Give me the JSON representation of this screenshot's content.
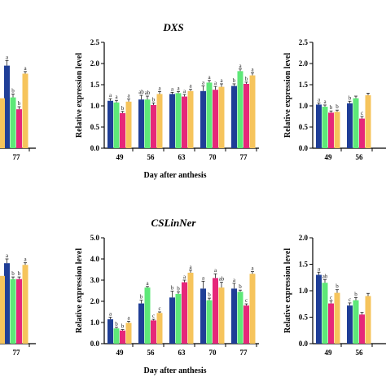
{
  "chart_data": [
    {
      "id": "top-left",
      "type": "bar",
      "categories": [
        "77"
      ],
      "ylim": [
        0,
        2.5
      ],
      "series": [
        {
          "values": [
            1.95
          ],
          "errors": [
            0.12
          ],
          "letters": [
            "a"
          ]
        },
        {
          "values": [
            1.2
          ],
          "errors": [
            0.08
          ],
          "letters": [
            "b"
          ]
        },
        {
          "values": [
            0.92
          ],
          "errors": [
            0.06
          ],
          "letters": [
            "b"
          ]
        },
        {
          "values": [
            1.76
          ],
          "errors": [
            0.05
          ],
          "letters": [
            "a"
          ]
        }
      ],
      "extra_left_bar": {
        "value": 1.18,
        "letter": ""
      }
    },
    {
      "id": "top-middle",
      "type": "bar",
      "title": "DXS",
      "xlabel": "Day after anthesis",
      "ylabel": "Relative expression level",
      "categories": [
        "49",
        "56",
        "63",
        "70",
        "77"
      ],
      "yticks": [
        "0.0",
        "0.5",
        "1.0",
        "1.5",
        "2.0",
        "2.5"
      ],
      "ylim": [
        0,
        2.5
      ],
      "series": [
        {
          "values": [
            1.12,
            1.15,
            1.28,
            1.35,
            1.47
          ],
          "errors": [
            0.05,
            0.1,
            0.04,
            0.12,
            0.05
          ],
          "letters": [
            "a",
            "ab",
            "a",
            "a",
            "b"
          ]
        },
        {
          "values": [
            1.08,
            1.15,
            1.3,
            1.55,
            1.82
          ],
          "errors": [
            0.05,
            0.08,
            0.04,
            0.05,
            0.05
          ],
          "letters": [
            "a",
            "ab",
            "a",
            "a",
            "a"
          ]
        },
        {
          "values": [
            0.83,
            1.02,
            1.22,
            1.38,
            1.52
          ],
          "errors": [
            0.04,
            0.05,
            0.05,
            0.08,
            0.04
          ],
          "letters": [
            "b",
            "b",
            "a",
            "a",
            "b"
          ]
        },
        {
          "values": [
            1.1,
            1.28,
            1.35,
            1.45,
            1.72
          ],
          "errors": [
            0.06,
            0.06,
            0.04,
            0.07,
            0.06
          ],
          "letters": [
            "a",
            "a",
            "a",
            "a",
            "a"
          ]
        }
      ]
    },
    {
      "id": "top-right",
      "type": "bar",
      "ylabel": "Relative expression level",
      "categories": [
        "49",
        "56"
      ],
      "yticks": [
        "0.0",
        "0.5",
        "1.0",
        "1.5",
        "2.0",
        "2.5"
      ],
      "ylim": [
        0,
        2.5
      ],
      "series": [
        {
          "values": [
            1.03,
            1.06
          ],
          "errors": [
            0.04,
            0.05
          ],
          "letters": [
            "a",
            "b"
          ]
        },
        {
          "values": [
            0.98,
            1.18
          ],
          "errors": [
            0.04,
            0.05
          ],
          "letters": [
            "a",
            ""
          ]
        },
        {
          "values": [
            0.84,
            0.7
          ],
          "errors": [
            0.04,
            0.05
          ],
          "letters": [
            "b",
            "c"
          ]
        },
        {
          "values": [
            0.86,
            1.25
          ],
          "errors": [
            0.04,
            0.05
          ],
          "letters": [
            "b",
            ""
          ]
        }
      ]
    },
    {
      "id": "bottom-left",
      "type": "bar",
      "categories": [
        "77"
      ],
      "ylim": [
        0,
        5.0
      ],
      "series": [
        {
          "values": [
            3.8
          ],
          "errors": [
            0.2
          ],
          "letters": [
            "a"
          ]
        },
        {
          "values": [
            3.05
          ],
          "errors": [
            0.1
          ],
          "letters": [
            "b"
          ]
        },
        {
          "values": [
            3.05
          ],
          "errors": [
            0.1
          ],
          "letters": [
            "b"
          ]
        },
        {
          "values": [
            3.72
          ],
          "errors": [
            0.1
          ],
          "letters": [
            "a"
          ]
        }
      ],
      "extra_left_bar": {
        "value": 3.2,
        "letter": ""
      }
    },
    {
      "id": "bottom-middle",
      "type": "bar",
      "title": "CSLinNer",
      "xlabel": "Day after anthesis",
      "ylabel": "Relative expression level",
      "categories": [
        "49",
        "56",
        "63",
        "70",
        "77"
      ],
      "yticks": [
        "0.0",
        "1.0",
        "2.0",
        "3.0",
        "4.0",
        "5.0"
      ],
      "ylim": [
        0,
        5.0
      ],
      "series": [
        {
          "values": [
            1.15,
            1.9,
            2.18,
            2.6,
            2.6
          ],
          "errors": [
            0.1,
            0.15,
            0.3,
            0.35,
            0.25
          ],
          "letters": [
            "a",
            "b",
            "b",
            "a",
            "a"
          ]
        },
        {
          "values": [
            0.72,
            2.65,
            2.35,
            2.05,
            2.45
          ],
          "errors": [
            0.05,
            0.05,
            0.1,
            0.1,
            0.08
          ],
          "letters": [
            "b",
            "a",
            "b",
            "b",
            "b"
          ]
        },
        {
          "values": [
            0.62,
            1.1,
            2.9,
            3.1,
            1.8
          ],
          "errors": [
            0.05,
            0.05,
            0.1,
            0.2,
            0.08
          ],
          "letters": [
            "b",
            "c",
            "a",
            "a",
            "c"
          ]
        },
        {
          "values": [
            0.98,
            1.45,
            3.35,
            2.65,
            3.3
          ],
          "errors": [
            0.08,
            0.05,
            0.12,
            0.25,
            0.1
          ],
          "letters": [
            "a",
            "c",
            "a",
            "ab",
            "a"
          ]
        }
      ]
    },
    {
      "id": "bottom-right",
      "type": "bar",
      "ylabel": "Relative expression level",
      "categories": [
        "49",
        "56"
      ],
      "yticks": [
        "0.0",
        "0.5",
        "1.0",
        "1.5",
        "2.0"
      ],
      "ylim": [
        0,
        2.0
      ],
      "series": [
        {
          "values": [
            1.3,
            0.72
          ],
          "errors": [
            0.05,
            0.05
          ],
          "letters": [
            "a",
            "c"
          ]
        },
        {
          "values": [
            1.15,
            0.82
          ],
          "errors": [
            0.06,
            0.05
          ],
          "letters": [
            "ab",
            "b"
          ]
        },
        {
          "values": [
            0.76,
            0.55
          ],
          "errors": [
            0.05,
            0.04
          ],
          "letters": [
            "c",
            ""
          ]
        },
        {
          "values": [
            0.96,
            0.9
          ],
          "errors": [
            0.06,
            0.05
          ],
          "letters": [
            "b",
            ""
          ]
        }
      ]
    }
  ],
  "colors": [
    "#1f3e97",
    "#5ee878",
    "#e6277a",
    "#f6c45c"
  ]
}
